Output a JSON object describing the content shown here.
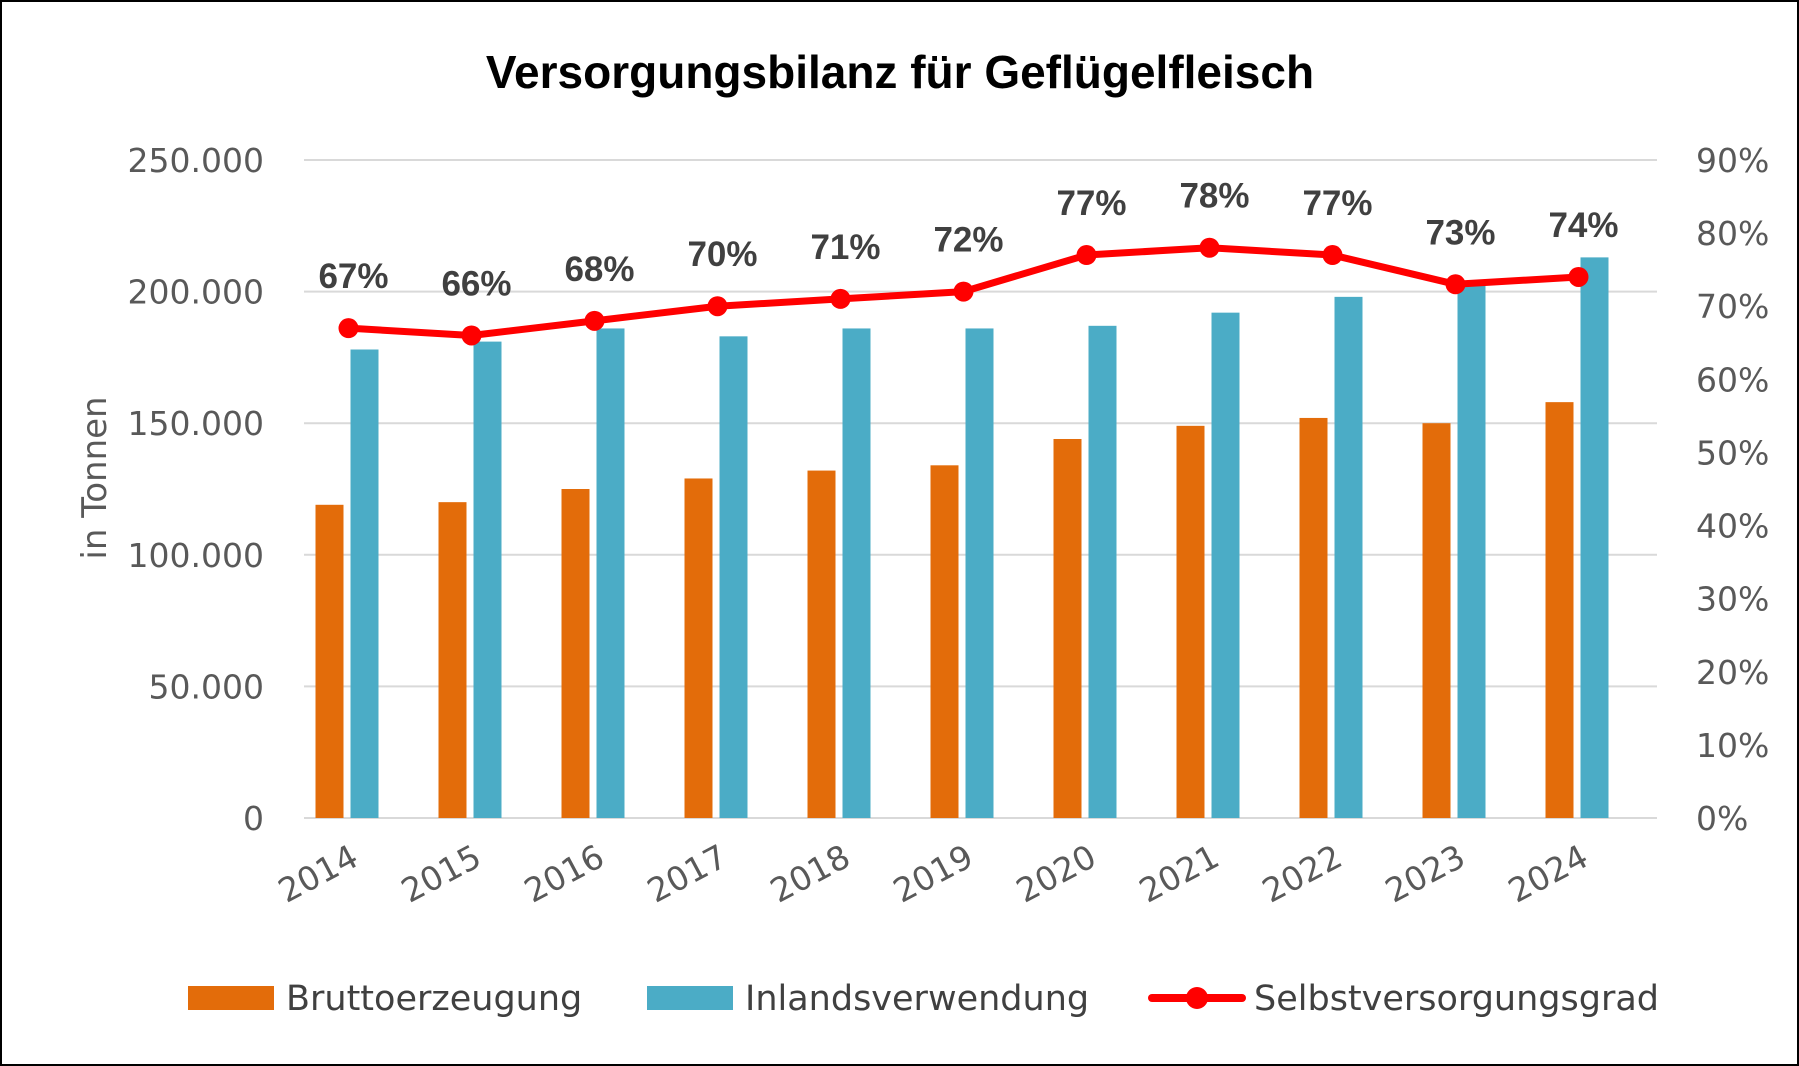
{
  "chart_data": {
    "type": "bar",
    "title": "Versorgungsbilanz für Geflügelfleisch",
    "ylabel": "in Tonnen",
    "categories": [
      "2014",
      "2015",
      "2016",
      "2017",
      "2018",
      "2019",
      "2020",
      "2021",
      "2022",
      "2023",
      "2024"
    ],
    "series": [
      {
        "name": "Bruttoerzeugung",
        "type": "bar",
        "axis": "left",
        "color": "#e36c0a",
        "values": [
          119000,
          120000,
          125000,
          129000,
          132000,
          134000,
          144000,
          149000,
          152000,
          150000,
          158000
        ]
      },
      {
        "name": "Inlandsverwendung",
        "type": "bar",
        "axis": "left",
        "color": "#4bacc6",
        "values": [
          178000,
          181000,
          186000,
          183000,
          186000,
          186000,
          187000,
          192000,
          198000,
          204000,
          213000
        ]
      },
      {
        "name": "Selbstversorgungsgrad",
        "type": "line",
        "axis": "right",
        "color": "#ff0000",
        "values": [
          67,
          66,
          68,
          70,
          71,
          72,
          77,
          78,
          77,
          73,
          74
        ],
        "labels": [
          "67%",
          "66%",
          "68%",
          "70%",
          "71%",
          "72%",
          "77%",
          "78%",
          "77%",
          "73%",
          "74%"
        ]
      }
    ],
    "ylim": [
      0,
      250000
    ],
    "y_ticks": [
      "0",
      "50.000",
      "100.000",
      "150.000",
      "200.000",
      "250.000"
    ],
    "y2lim": [
      0,
      90
    ],
    "y2_ticks": [
      "0%",
      "10%",
      "20%",
      "30%",
      "40%",
      "50%",
      "60%",
      "70%",
      "80%",
      "90%"
    ],
    "grid": true,
    "legend_position": "bottom"
  }
}
